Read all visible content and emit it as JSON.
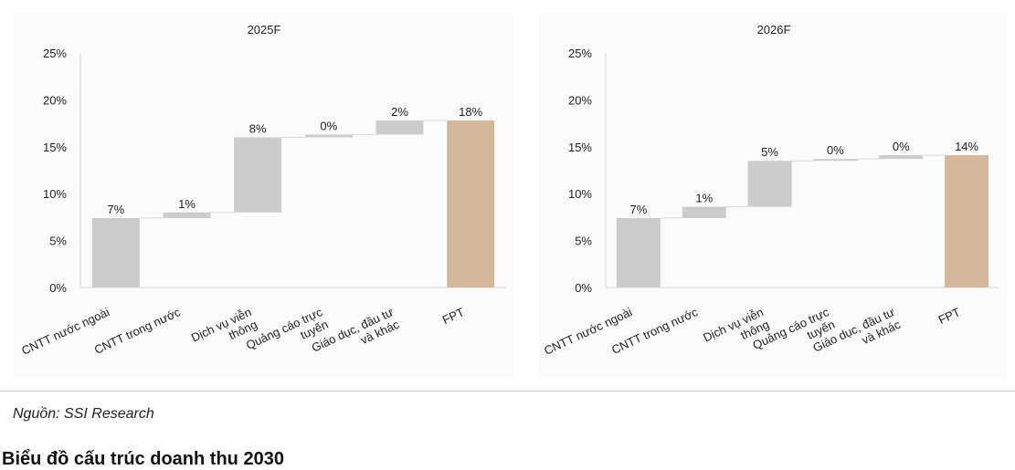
{
  "chart_data": [
    {
      "type": "waterfall",
      "title": "2025F",
      "categories": [
        [
          "CNTT nước ngoài"
        ],
        [
          "CNTT trong nước"
        ],
        [
          "Dịch vụ viễn",
          "thông"
        ],
        [
          "Quảng cáo trực",
          "tuyến"
        ],
        [
          "Giáo dục, đầu tư",
          "và khác"
        ],
        [
          "FPT"
        ]
      ],
      "values": [
        7.4,
        0.6,
        8.0,
        0.3,
        1.5,
        17.8
      ],
      "data_labels": [
        "7%",
        "1%",
        "8%",
        "0%",
        "2%",
        "18%"
      ],
      "total_index": 5,
      "yticks": [
        "0%",
        "5%",
        "10%",
        "15%",
        "20%",
        "25%"
      ],
      "ylim": [
        0,
        25
      ],
      "colors": {
        "step": "#cccccc",
        "total": "#d3b99a"
      }
    },
    {
      "type": "waterfall",
      "title": "2026F",
      "categories": [
        [
          "CNTT nước ngoài"
        ],
        [
          "CNTT trong nước"
        ],
        [
          "Dịch vụ viễn",
          "thông"
        ],
        [
          "Quảng cáo trực",
          "tuyến"
        ],
        [
          "Giáo dục, đầu tư",
          "và khác"
        ],
        [
          "FPT"
        ]
      ],
      "values": [
        7.4,
        1.2,
        4.9,
        0.2,
        0.4,
        14.1
      ],
      "data_labels": [
        "7%",
        "1%",
        "5%",
        "0%",
        "0%",
        "14%"
      ],
      "total_index": 5,
      "yticks": [
        "0%",
        "5%",
        "10%",
        "15%",
        "20%",
        "25%"
      ],
      "ylim": [
        0,
        25
      ],
      "colors": {
        "step": "#cccccc",
        "total": "#d3b99a"
      }
    }
  ],
  "source": "Nguồn: SSI Research",
  "next_heading": "Biểu đồ cấu trúc doanh thu 2030"
}
